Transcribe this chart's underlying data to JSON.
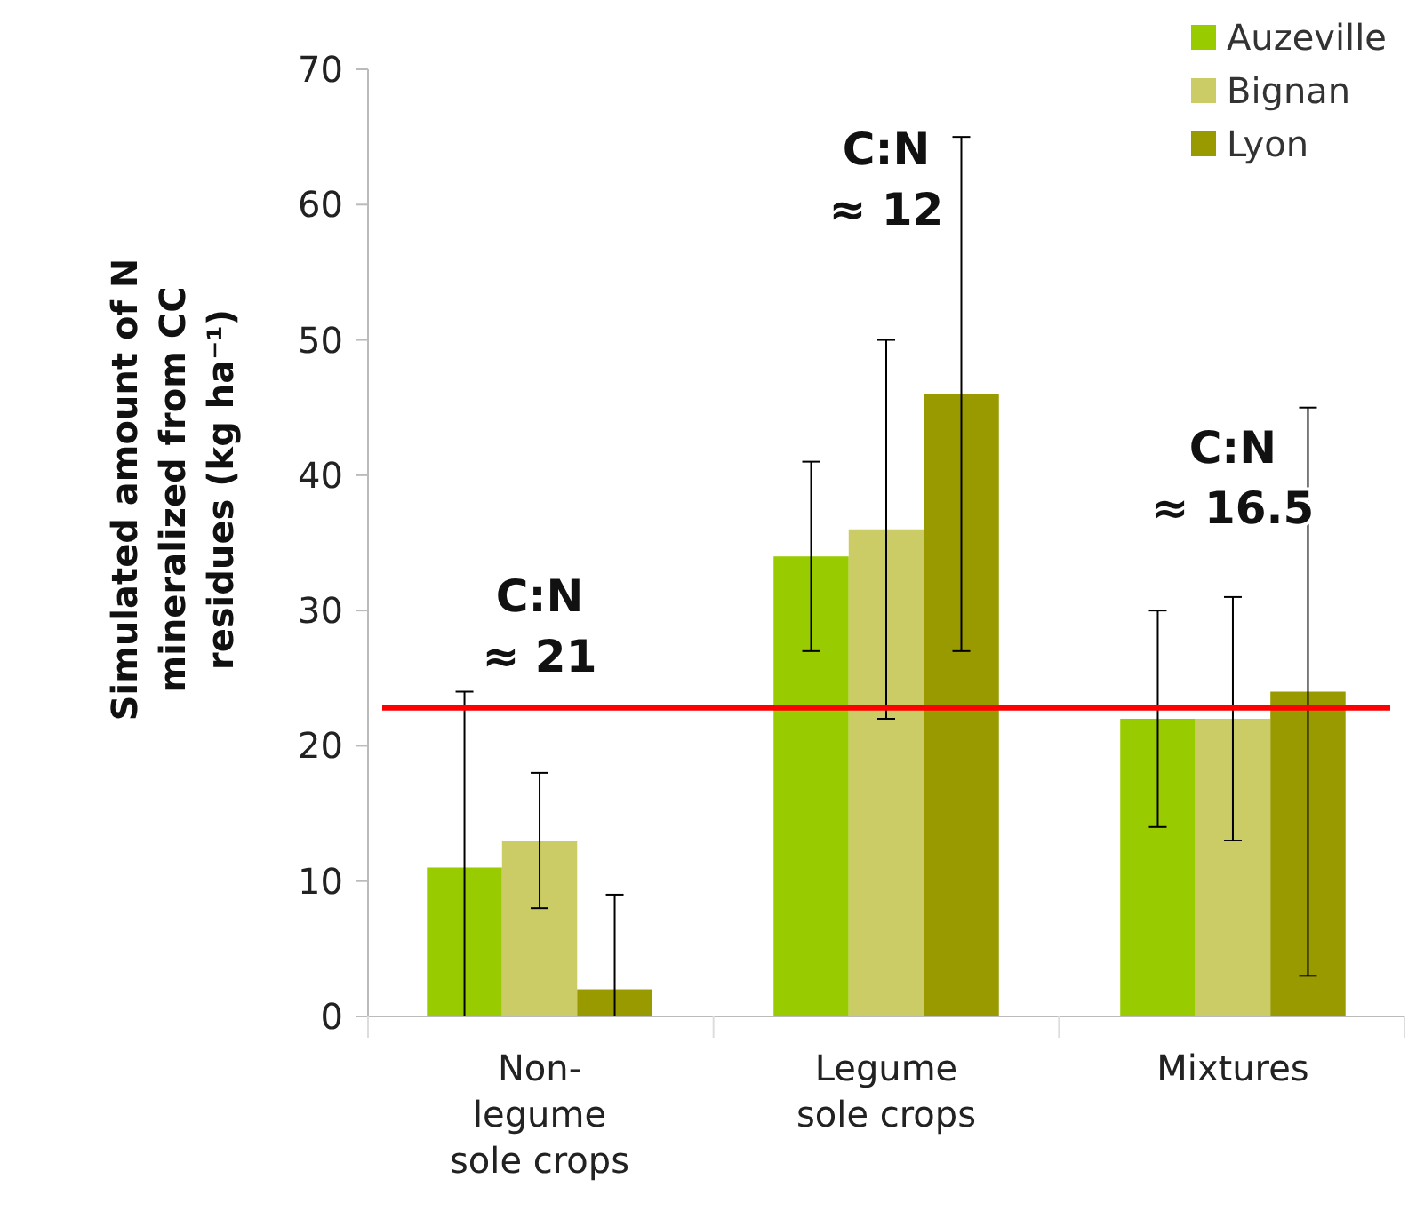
{
  "chart_data": {
    "type": "bar",
    "ylabel": "Simulated amount of N mineralized from CC residues  (kg ha⁻¹)",
    "categories": [
      "Non-legume sole crops",
      "Legume sole crops",
      "Mixtures"
    ],
    "series": [
      {
        "name": "Auzeville",
        "color": "#99cc00",
        "values": [
          11,
          34,
          22
        ],
        "errors": [
          [
            0,
            24
          ],
          [
            27,
            41
          ],
          [
            14,
            30
          ]
        ]
      },
      {
        "name": "Bignan",
        "color": "#cccc66",
        "values": [
          13,
          36,
          22
        ],
        "errors": [
          [
            8,
            18
          ],
          [
            22,
            50
          ],
          [
            13,
            31
          ]
        ]
      },
      {
        "name": "Lyon",
        "color": "#999900",
        "values": [
          2,
          46,
          24
        ],
        "errors": [
          [
            0,
            9
          ],
          [
            27,
            65
          ],
          [
            3,
            45
          ]
        ]
      }
    ],
    "ylim": [
      0,
      70
    ],
    "yticks": [
      0,
      10,
      20,
      30,
      40,
      50,
      60,
      70
    ],
    "grid": false,
    "legend": "top right",
    "ref_lines": [
      {
        "axis": "y",
        "value": 22.8,
        "color": "#ff0000"
      }
    ],
    "annotations": [
      "C:N ≈ 21",
      "C:N ≈ 12",
      "C:N ≈ 16.5"
    ]
  }
}
